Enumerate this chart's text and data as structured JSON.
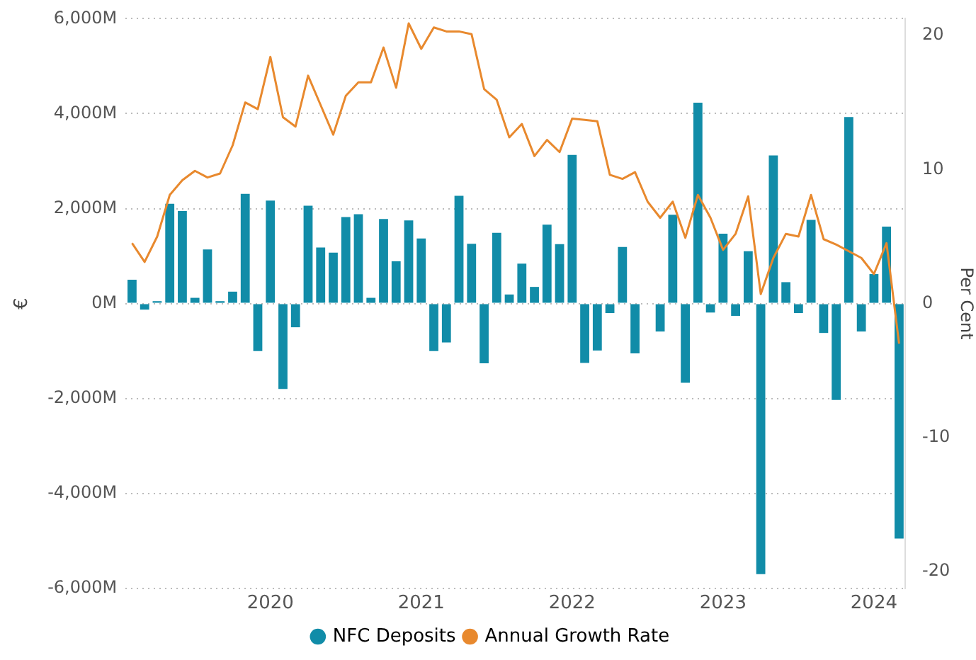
{
  "chart_data": {
    "type": "bar",
    "xlabel": null,
    "ylabel": "€",
    "y2label": "Per Cent",
    "x": [
      "2019-02",
      "2019-03",
      "2019-04",
      "2019-05",
      "2019-06",
      "2019-07",
      "2019-08",
      "2019-09",
      "2019-10",
      "2019-11",
      "2019-12",
      "2020-01",
      "2020-02",
      "2020-03",
      "2020-04",
      "2020-05",
      "2020-06",
      "2020-07",
      "2020-08",
      "2020-09",
      "2020-10",
      "2020-11",
      "2020-12",
      "2021-01",
      "2021-02",
      "2021-03",
      "2021-04",
      "2021-05",
      "2021-06",
      "2021-07",
      "2021-08",
      "2021-09",
      "2021-10",
      "2021-11",
      "2021-12",
      "2022-01",
      "2022-02",
      "2022-03",
      "2022-04",
      "2022-05",
      "2022-06",
      "2022-07",
      "2022-08",
      "2022-09",
      "2022-10",
      "2022-11",
      "2022-12",
      "2023-01",
      "2023-02",
      "2023-03",
      "2023-04",
      "2023-05",
      "2023-06",
      "2023-07",
      "2023-08",
      "2023-09",
      "2023-10",
      "2023-11",
      "2023-12",
      "2024-01",
      "2024-02",
      "2024-03"
    ],
    "series": [
      {
        "name": "NFC Deposits",
        "color": "#118ca8",
        "values": [
          500,
          -130,
          50,
          2100,
          1950,
          120,
          1140,
          50,
          250,
          2310,
          -1000,
          2170,
          -1800,
          -500,
          2060,
          1180,
          1070,
          1820,
          1880,
          120,
          1780,
          890,
          1750,
          1370,
          -1000,
          -820,
          2270,
          1260,
          -1260,
          1490,
          190,
          840,
          350,
          1660,
          1250,
          3130,
          -1250,
          -990,
          -200,
          1190,
          -1050,
          null,
          -590,
          1870,
          -1670,
          4230,
          -190,
          1470,
          -260,
          1100,
          -5700,
          3120,
          450,
          -200,
          1760,
          -620,
          -2030,
          3930,
          -590,
          620,
          1620,
          -4950
        ]
      },
      {
        "name": "Annual Growth Rate",
        "type": "line",
        "axis": "y2",
        "color": "#e8892e",
        "values": [
          4.5,
          3.1,
          5.0,
          8.1,
          9.2,
          9.9,
          9.4,
          9.7,
          11.8,
          15.0,
          14.5,
          18.4,
          13.9,
          13.2,
          17.0,
          14.8,
          12.6,
          15.5,
          16.5,
          16.5,
          19.1,
          16.1,
          20.9,
          19.0,
          20.6,
          20.3,
          20.3,
          20.1,
          16.0,
          15.2,
          12.4,
          13.4,
          11.0,
          12.2,
          11.3,
          13.8,
          13.7,
          13.6,
          9.6,
          9.3,
          9.8,
          7.6,
          6.4,
          7.6,
          4.9,
          8.1,
          6.4,
          4.0,
          5.2,
          8.0,
          0.7,
          3.4,
          5.2,
          5.0,
          8.1,
          4.8,
          4.4,
          3.9,
          3.4,
          2.2,
          4.5,
          -3.0
        ]
      }
    ],
    "xlim": [
      "2019-01-16",
      "2024-03-16"
    ],
    "xticks": [
      {
        "value": "2020",
        "label": "2020"
      },
      {
        "value": "2021",
        "label": "2021"
      },
      {
        "value": "2022",
        "label": "2022"
      },
      {
        "value": "2023",
        "label": "2023"
      },
      {
        "value": "2024",
        "label": "2024"
      }
    ],
    "ylim": [
      -6000,
      6000
    ],
    "yticks": [
      {
        "value": -6000,
        "label": "-6,000M"
      },
      {
        "value": -4000,
        "label": "-4,000M"
      },
      {
        "value": -2000,
        "label": "-2,000M"
      },
      {
        "value": 0,
        "label": "0M"
      },
      {
        "value": 2000,
        "label": "2,000M"
      },
      {
        "value": 4000,
        "label": "4,000M"
      },
      {
        "value": 6000,
        "label": "6,000M"
      }
    ],
    "y2lim": [
      -21.25,
      21.25
    ],
    "y2ticks": [
      -20,
      -10,
      0,
      10,
      20
    ],
    "grid": "y",
    "legend": "bottom",
    "marker": "none",
    "line_style": "solid"
  }
}
